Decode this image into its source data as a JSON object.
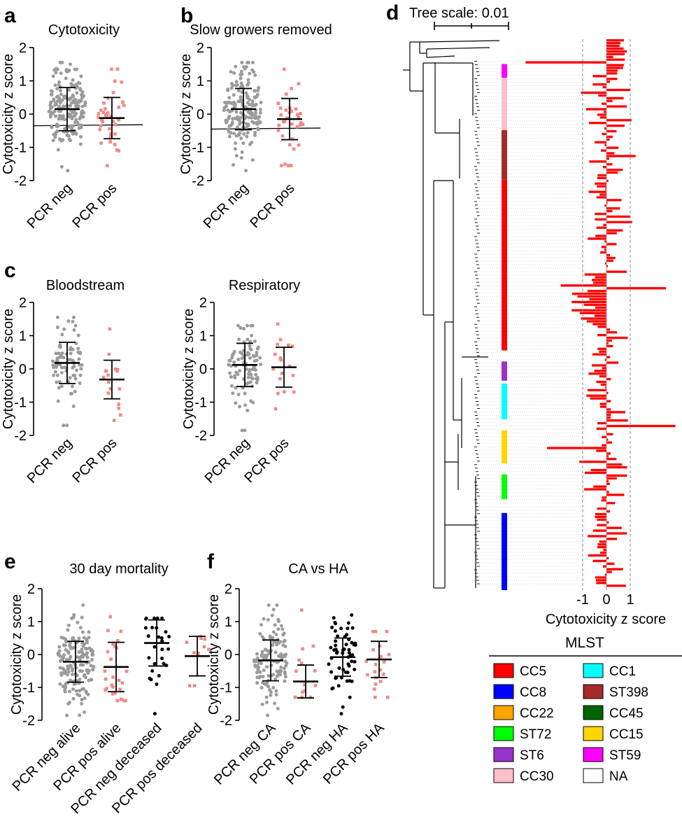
{
  "colors": {
    "neg": "#9b9b9b",
    "pos": "#f08a84",
    "black": "#000000",
    "bar": "#ff0000",
    "grid": "#888888"
  },
  "chart_data": [
    {
      "id": "a",
      "panel_label": "a",
      "type": "scatter",
      "title": "Cytotoxicity",
      "ylabel": "Cytotoxicity z score",
      "ylim": [
        -2,
        2
      ],
      "yticks": [
        "-2",
        "-1",
        "0",
        "1",
        "2"
      ],
      "categories": [
        "PCR neg",
        "PCR pos"
      ],
      "series": [
        {
          "name": "PCR neg",
          "n": 190,
          "mean": 0.15,
          "sd": 0.65,
          "min": -1.7,
          "max": 1.55
        },
        {
          "name": "PCR pos",
          "n": 38,
          "mean": -0.12,
          "sd": 0.62,
          "min": -1.55,
          "max": 1.35
        }
      ],
      "trend_line": [
        -0.35,
        -0.32
      ]
    },
    {
      "id": "b",
      "panel_label": "b",
      "type": "scatter",
      "title": "Slow growers removed",
      "ylabel": "Cytotoxicity z score",
      "ylim": [
        -2,
        2
      ],
      "yticks": [
        "-2",
        "-1",
        "0",
        "1",
        "2"
      ],
      "categories": [
        "PCR neg",
        "PCR pos"
      ],
      "series": [
        {
          "name": "PCR neg",
          "n": 180,
          "mean": 0.15,
          "sd": 0.62,
          "min": -1.7,
          "max": 1.55
        },
        {
          "name": "PCR pos",
          "n": 35,
          "mean": -0.15,
          "sd": 0.62,
          "min": -1.55,
          "max": 1.35
        }
      ],
      "trend_line": [
        -0.45,
        -0.42
      ]
    },
    {
      "id": "c1",
      "panel_label": "c",
      "type": "scatter",
      "title": "Bloodstream",
      "ylabel": "Cytotoxicity z score",
      "ylim": [
        -2,
        2
      ],
      "yticks": [
        "-2",
        "-1",
        "0",
        "1",
        "2"
      ],
      "categories": [
        "PCR neg",
        "PCR pos"
      ],
      "series": [
        {
          "name": "PCR neg",
          "n": 80,
          "mean": 0.18,
          "sd": 0.62,
          "min": -1.7,
          "max": 1.55
        },
        {
          "name": "PCR pos",
          "n": 17,
          "mean": -0.32,
          "sd": 0.58,
          "min": -1.55,
          "max": 1.2
        }
      ]
    },
    {
      "id": "c2",
      "panel_label": "",
      "type": "scatter",
      "title": "Respiratory",
      "ylabel": "Cytotoxicity z score",
      "ylim": [
        -2,
        2
      ],
      "yticks": [
        "-2",
        "-1",
        "0",
        "1",
        "2"
      ],
      "categories": [
        "PCR neg",
        "PCR pos"
      ],
      "series": [
        {
          "name": "PCR neg",
          "n": 95,
          "mean": 0.12,
          "sd": 0.65,
          "min": -1.85,
          "max": 1.3
        },
        {
          "name": "PCR pos",
          "n": 17,
          "mean": 0.05,
          "sd": 0.6,
          "min": -1.2,
          "max": 1.35
        }
      ]
    },
    {
      "id": "e",
      "panel_label": "e",
      "type": "scatter",
      "title": "30 day mortality",
      "ylabel": "Cytotoxicity z score",
      "ylim": [
        -2,
        2
      ],
      "yticks": [
        "-2",
        "-1",
        "0",
        "1",
        "2"
      ],
      "categories": [
        "PCR neg alive",
        "PCR pos alive",
        "PCR neg deceased",
        "PCR pos deceased"
      ],
      "series": [
        {
          "name": "PCR neg alive",
          "n": 170,
          "mean": -0.22,
          "sd": 0.62,
          "min": -1.85,
          "max": 1.5
        },
        {
          "name": "PCR pos alive",
          "n": 28,
          "mean": -0.38,
          "sd": 0.75,
          "min": -1.4,
          "max": 1.15
        },
        {
          "name": "PCR neg deceased",
          "n": 28,
          "mean": 0.35,
          "sd": 0.7,
          "min": -1.8,
          "max": 1.1
        },
        {
          "name": "PCR pos deceased",
          "n": 10,
          "mean": -0.05,
          "sd": 0.6,
          "min": -0.95,
          "max": 0.55
        }
      ]
    },
    {
      "id": "f",
      "panel_label": "f",
      "type": "scatter",
      "title": "CA vs HA",
      "ylabel": "Cytotoxicity z score",
      "ylim": [
        -2,
        2
      ],
      "yticks": [
        "-2",
        "-1",
        "0",
        "1",
        "2"
      ],
      "categories": [
        "PCR neg CA",
        "PCR pos CA",
        "PCR neg HA",
        "PCR pos HA"
      ],
      "series": [
        {
          "name": "PCR neg CA",
          "n": 130,
          "mean": -0.18,
          "sd": 0.62,
          "min": -1.85,
          "max": 1.5
        },
        {
          "name": "PCR pos CA",
          "n": 15,
          "mean": -0.82,
          "sd": 0.5,
          "min": -1.3,
          "max": 1.35
        },
        {
          "name": "PCR neg HA",
          "n": 60,
          "mean": -0.08,
          "sd": 0.58,
          "min": -1.8,
          "max": 1.2
        },
        {
          "name": "PCR pos HA",
          "n": 20,
          "mean": -0.15,
          "sd": 0.55,
          "min": -1.3,
          "max": 0.7
        }
      ]
    },
    {
      "id": "d",
      "panel_label": "d",
      "type": "bar",
      "orientation": "horizontal",
      "tree_scale_label": "Tree scale: 0.01",
      "xlabel": "Cytotoxicity z score",
      "xticks": [
        -1,
        0,
        1
      ],
      "xtick_labels": [
        "-1",
        "0",
        "1"
      ],
      "mlst_tracks": [
        {
          "group": "ST59",
          "from": 0.045,
          "to": 0.07
        },
        {
          "group": "CC30",
          "from": 0.07,
          "to": 0.165
        },
        {
          "group": "ST398",
          "from": 0.165,
          "to": 0.255
        },
        {
          "group": "CC5",
          "from": 0.255,
          "to": 0.565
        },
        {
          "group": "ST6",
          "from": 0.585,
          "to": 0.62
        },
        {
          "group": "CC1",
          "from": 0.625,
          "to": 0.69
        },
        {
          "group": "CC15",
          "from": 0.71,
          "to": 0.77
        },
        {
          "group": "ST72",
          "from": 0.79,
          "to": 0.835
        },
        {
          "group": "CC8",
          "from": 0.86,
          "to": 1.0
        }
      ]
    }
  ],
  "legend": {
    "title": "MLST",
    "items": [
      {
        "label": "CC5",
        "color": "#ff0000"
      },
      {
        "label": "CC1",
        "color": "#00ffff"
      },
      {
        "label": "CC8",
        "color": "#0000ff"
      },
      {
        "label": "ST398",
        "color": "#a52a2a"
      },
      {
        "label": "CC22",
        "color": "#ffa500"
      },
      {
        "label": "CC45",
        "color": "#006400"
      },
      {
        "label": "ST72",
        "color": "#00ff00"
      },
      {
        "label": "CC15",
        "color": "#ffd700"
      },
      {
        "label": "ST6",
        "color": "#9932cc"
      },
      {
        "label": "ST59",
        "color": "#ff00ff"
      },
      {
        "label": "CC30",
        "color": "#ffc0cb"
      },
      {
        "label": "NA",
        "color": "#ffffff"
      }
    ]
  }
}
